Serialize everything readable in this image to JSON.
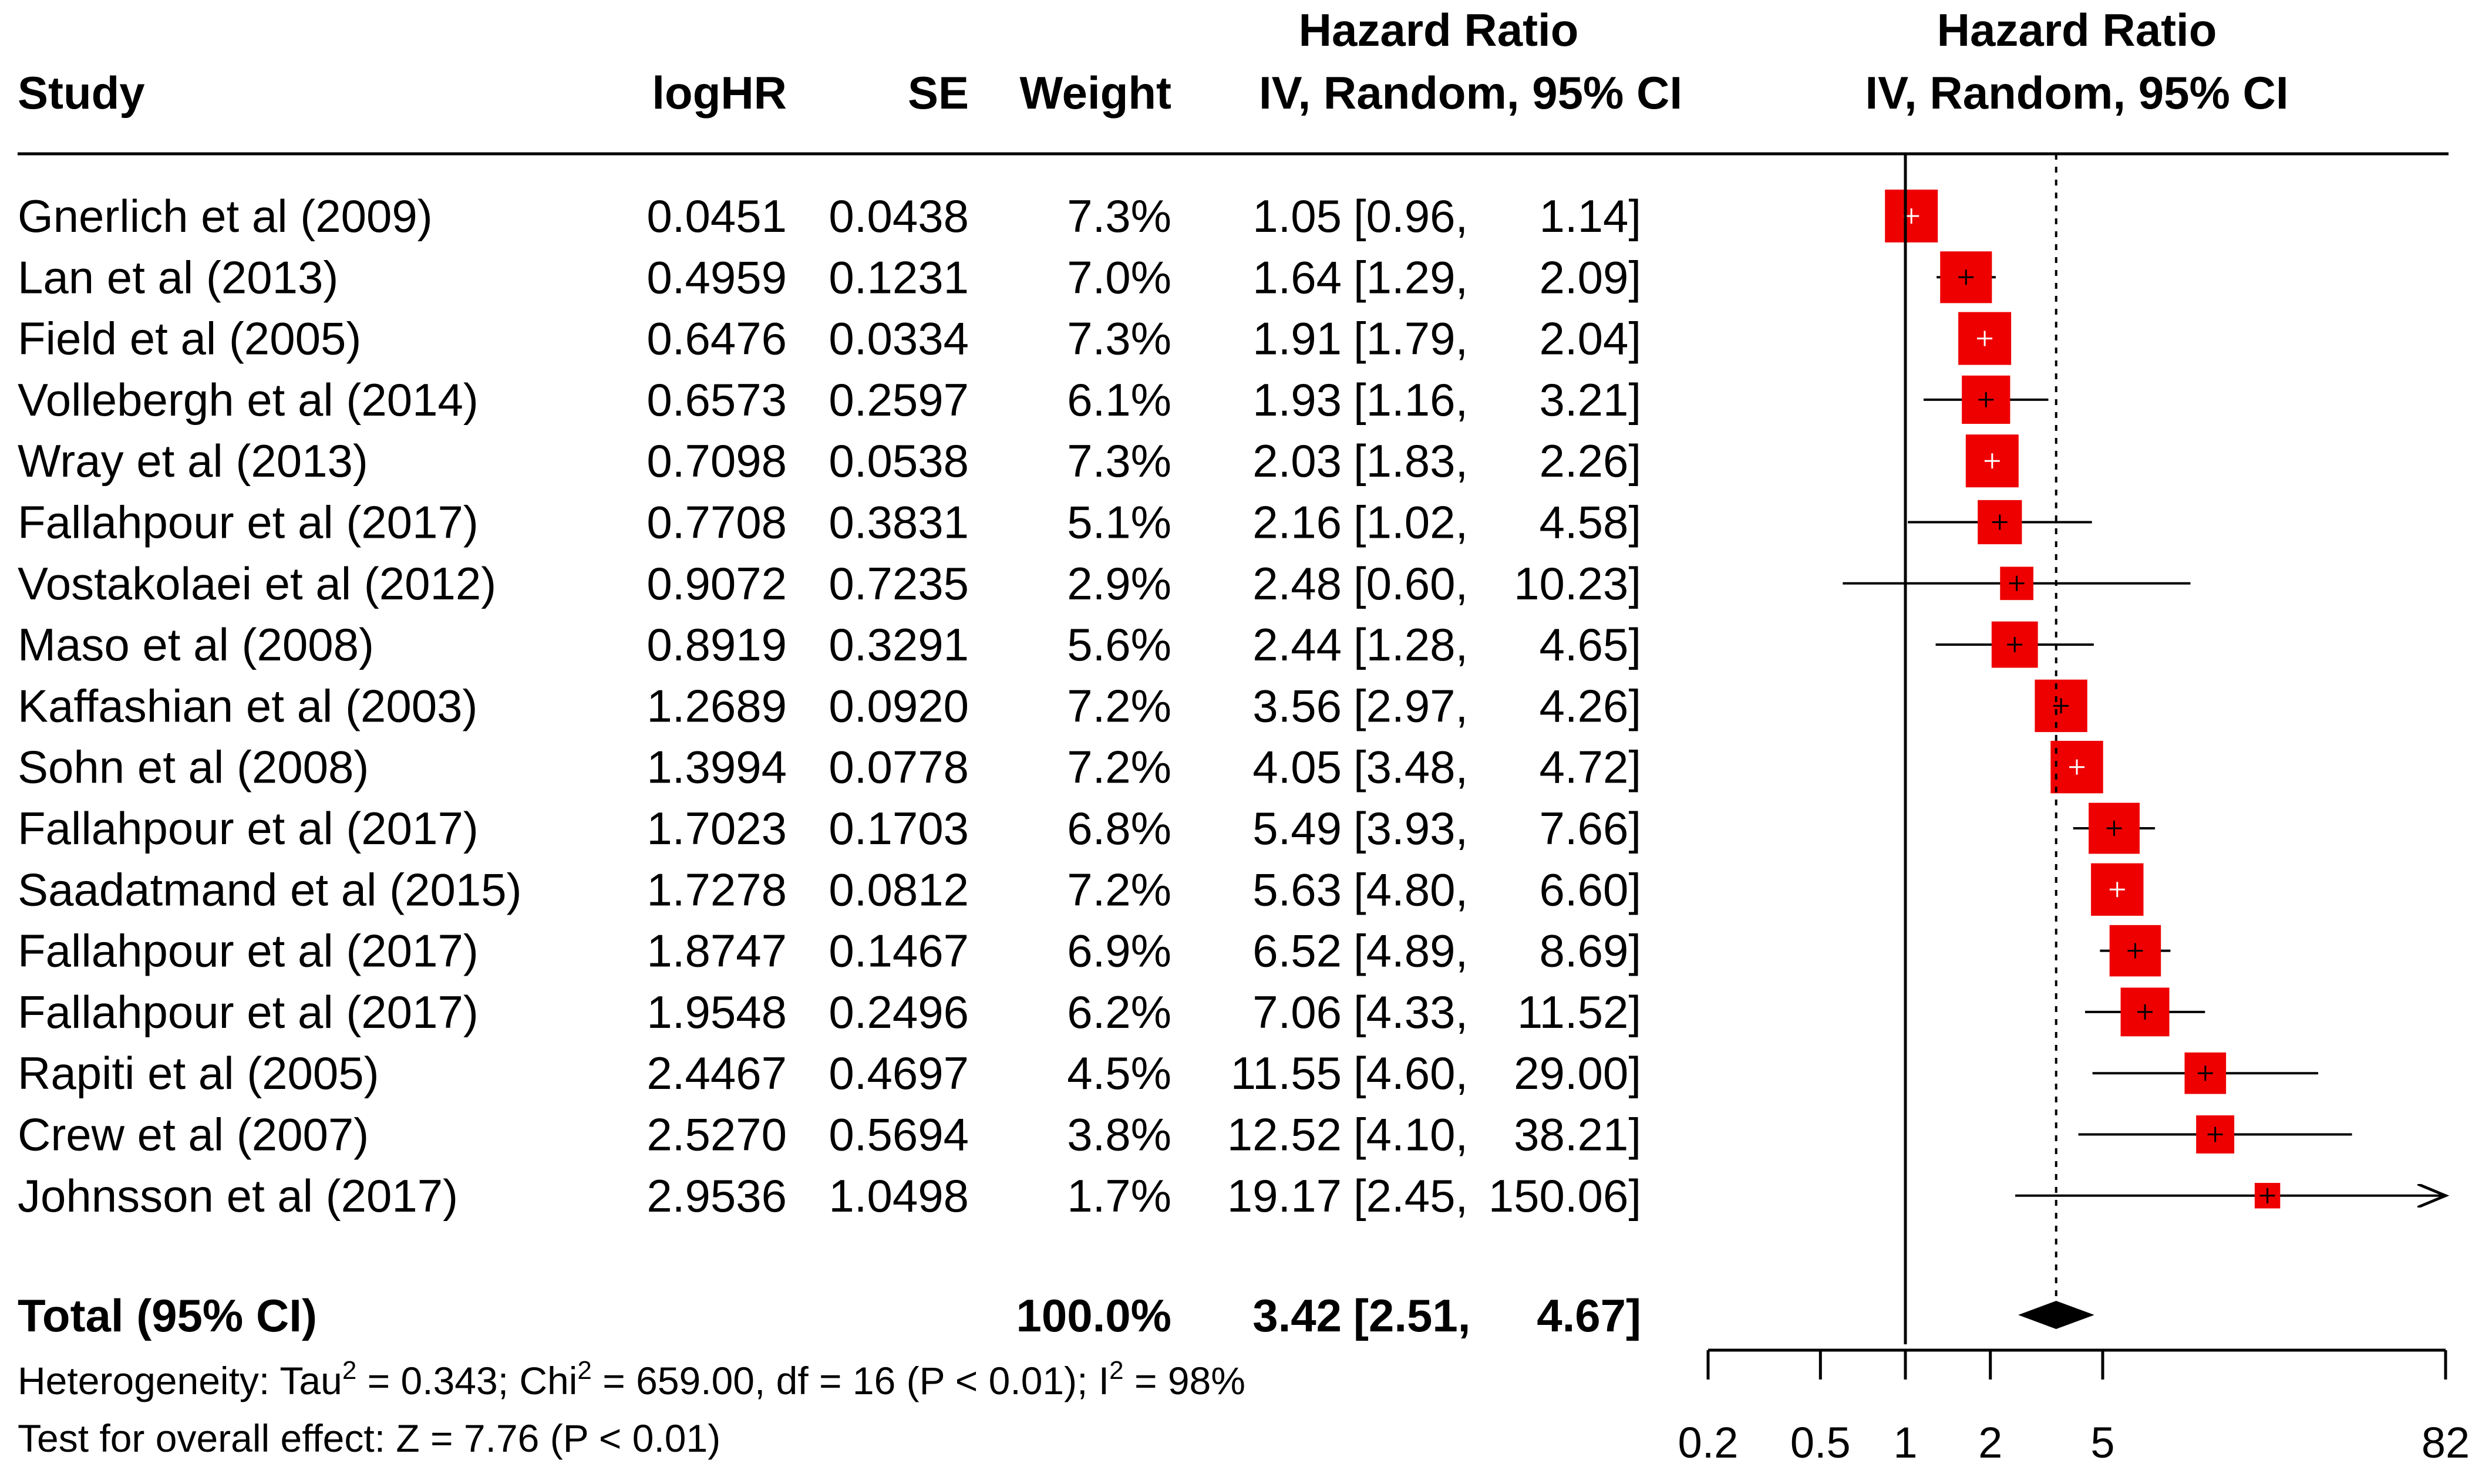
{
  "chart_data": {
    "type": "forest",
    "measure": "Hazard Ratio",
    "method": "IV, Random, 95% CI",
    "columns": {
      "study": "Study",
      "loghr": "logHR",
      "se": "SE",
      "weight": "Weight",
      "hr_group": "Hazard Ratio",
      "hr_method": "IV, Random, 95% CI",
      "plot_group": "Hazard Ratio",
      "plot_method": "IV, Random, 95% CI"
    },
    "studies": [
      {
        "name": "Gnerlich et al (2009)",
        "loghr": "0.0451",
        "se": "0.0438",
        "weight": "7.3%",
        "hr": "1.05",
        "lo": "[0.96,",
        "hi": "1.14]",
        "hr_v": 1.05,
        "lo_v": 0.96,
        "hi_v": 1.14,
        "w_v": 7.3
      },
      {
        "name": "Lan et al (2013)",
        "loghr": "0.4959",
        "se": "0.1231",
        "weight": "7.0%",
        "hr": "1.64",
        "lo": "[1.29,",
        "hi": "2.09]",
        "hr_v": 1.64,
        "lo_v": 1.29,
        "hi_v": 2.09,
        "w_v": 7.0
      },
      {
        "name": "Field et al (2005)",
        "loghr": "0.6476",
        "se": "0.0334",
        "weight": "7.3%",
        "hr": "1.91",
        "lo": "[1.79,",
        "hi": "2.04]",
        "hr_v": 1.91,
        "lo_v": 1.79,
        "hi_v": 2.04,
        "w_v": 7.3
      },
      {
        "name": "Vollebergh et al (2014)",
        "loghr": "0.6573",
        "se": "0.2597",
        "weight": "6.1%",
        "hr": "1.93",
        "lo": "[1.16,",
        "hi": "3.21]",
        "hr_v": 1.93,
        "lo_v": 1.16,
        "hi_v": 3.21,
        "w_v": 6.1
      },
      {
        "name": "Wray et al (2013)",
        "loghr": "0.7098",
        "se": "0.0538",
        "weight": "7.3%",
        "hr": "2.03",
        "lo": "[1.83,",
        "hi": "2.26]",
        "hr_v": 2.03,
        "lo_v": 1.83,
        "hi_v": 2.26,
        "w_v": 7.3
      },
      {
        "name": "Fallahpour et al (2017)",
        "loghr": "0.7708",
        "se": "0.3831",
        "weight": "5.1%",
        "hr": "2.16",
        "lo": "[1.02,",
        "hi": "4.58]",
        "hr_v": 2.16,
        "lo_v": 1.02,
        "hi_v": 4.58,
        "w_v": 5.1
      },
      {
        "name": "Vostakolaei et al (2012)",
        "loghr": "0.9072",
        "se": "0.7235",
        "weight": "2.9%",
        "hr": "2.48",
        "lo": "[0.60,",
        "hi": "10.23]",
        "hr_v": 2.48,
        "lo_v": 0.6,
        "hi_v": 10.23,
        "w_v": 2.9
      },
      {
        "name": "Maso et al (2008)",
        "loghr": "0.8919",
        "se": "0.3291",
        "weight": "5.6%",
        "hr": "2.44",
        "lo": "[1.28,",
        "hi": "4.65]",
        "hr_v": 2.44,
        "lo_v": 1.28,
        "hi_v": 4.65,
        "w_v": 5.6
      },
      {
        "name": "Kaffashian et al (2003)",
        "loghr": "1.2689",
        "se": "0.0920",
        "weight": "7.2%",
        "hr": "3.56",
        "lo": "[2.97,",
        "hi": "4.26]",
        "hr_v": 3.56,
        "lo_v": 2.97,
        "hi_v": 4.26,
        "w_v": 7.2
      },
      {
        "name": "Sohn et al (2008)",
        "loghr": "1.3994",
        "se": "0.0778",
        "weight": "7.2%",
        "hr": "4.05",
        "lo": "[3.48,",
        "hi": "4.72]",
        "hr_v": 4.05,
        "lo_v": 3.48,
        "hi_v": 4.72,
        "w_v": 7.2
      },
      {
        "name": "Fallahpour et al (2017)",
        "loghr": "1.7023",
        "se": "0.1703",
        "weight": "6.8%",
        "hr": "5.49",
        "lo": "[3.93,",
        "hi": "7.66]",
        "hr_v": 5.49,
        "lo_v": 3.93,
        "hi_v": 7.66,
        "w_v": 6.8
      },
      {
        "name": "Saadatmand et al  (2015)",
        "loghr": "1.7278",
        "se": "0.0812",
        "weight": "7.2%",
        "hr": "5.63",
        "lo": "[4.80,",
        "hi": "6.60]",
        "hr_v": 5.63,
        "lo_v": 4.8,
        "hi_v": 6.6,
        "w_v": 7.2
      },
      {
        "name": "Fallahpour et al (2017)",
        "loghr": "1.8747",
        "se": "0.1467",
        "weight": "6.9%",
        "hr": "6.52",
        "lo": "[4.89,",
        "hi": "8.69]",
        "hr_v": 6.52,
        "lo_v": 4.89,
        "hi_v": 8.69,
        "w_v": 6.9
      },
      {
        "name": "Fallahpour et al (2017)",
        "loghr": "1.9548",
        "se": "0.2496",
        "weight": "6.2%",
        "hr": "7.06",
        "lo": "[4.33,",
        "hi": "11.52]",
        "hr_v": 7.06,
        "lo_v": 4.33,
        "hi_v": 11.52,
        "w_v": 6.2
      },
      {
        "name": "Rapiti et al (2005)",
        "loghr": "2.4467",
        "se": "0.4697",
        "weight": "4.5%",
        "hr": "11.55",
        "lo": "[4.60,",
        "hi": "29.00]",
        "hr_v": 11.55,
        "lo_v": 4.6,
        "hi_v": 29.0,
        "w_v": 4.5
      },
      {
        "name": "Crew et al  (2007)",
        "loghr": "2.5270",
        "se": "0.5694",
        "weight": "3.8%",
        "hr": "12.52",
        "lo": "[4.10,",
        "hi": "38.21]",
        "hr_v": 12.52,
        "lo_v": 4.1,
        "hi_v": 38.21,
        "w_v": 3.8
      },
      {
        "name": "Johnsson et al (2017)",
        "loghr": "2.9536",
        "se": "1.0498",
        "weight": "1.7%",
        "hr": "19.17",
        "lo": "[2.45,",
        "hi": "150.06]",
        "hr_v": 19.17,
        "lo_v": 2.45,
        "hi_v": 150.06,
        "w_v": 1.7
      }
    ],
    "total": {
      "label": "Total (95% CI)",
      "weight": "100.0%",
      "hr": "3.42",
      "lo": "[2.51,",
      "hi": "4.67]",
      "hr_v": 3.42,
      "lo_v": 2.51,
      "hi_v": 4.67
    },
    "heterogeneity": {
      "prefix": "Heterogeneity: Tau",
      "tau_sup": "2",
      "tau_val": " = 0.343; Chi",
      "chi_sup": "2",
      "chi_val": " = 659.00, df = 16 (P < 0.01); I",
      "i_sup": "2",
      "i_val": " = 98%"
    },
    "overall_effect": "Test for overall effect: Z = 7.76 (P <  0.01)",
    "x_axis": {
      "scale": "log",
      "range": [
        0.2,
        82
      ],
      "ticks": [
        0.2,
        0.5,
        1,
        2,
        5,
        82
      ],
      "tick_labels": [
        "0.2",
        "0.5",
        "1",
        "2",
        "5",
        "82"
      ],
      "null_line": 1,
      "summary_line": 3.42
    },
    "colors": {
      "box": "#ee0000",
      "diamond": "#000000",
      "ci_line": "#000000"
    }
  }
}
